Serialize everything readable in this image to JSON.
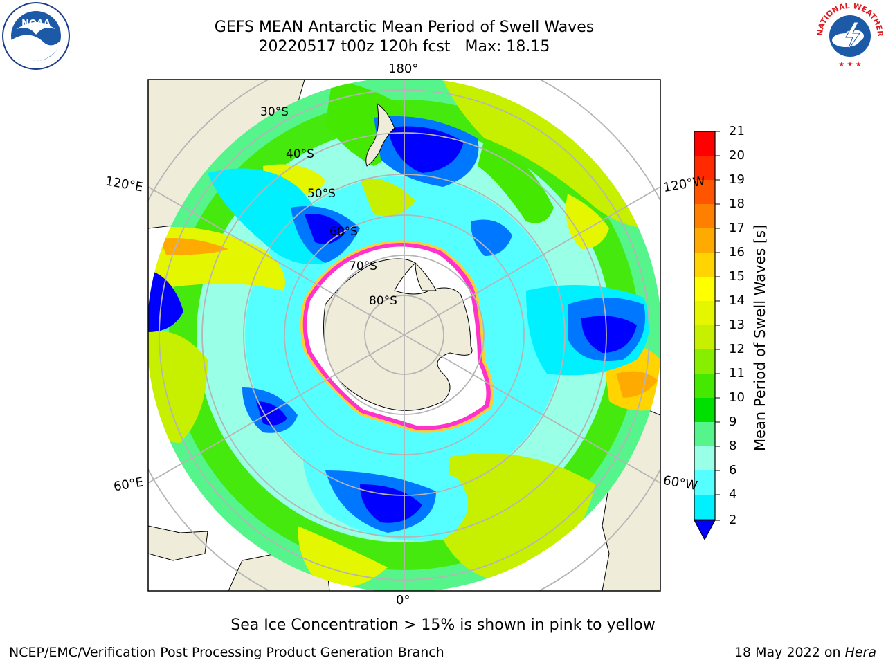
{
  "header": {
    "title": "GEFS MEAN Antarctic Mean Period of Swell Waves",
    "date_run": "20220517 t00z 120h fcst",
    "max_label": "Max: 18.15"
  },
  "logos": {
    "left": {
      "icon": "noaa-logo-icon",
      "text": "NOAA"
    },
    "right": {
      "icon": "nws-logo-icon",
      "text": "NATIONAL WEATHER SERVICE"
    }
  },
  "map": {
    "projection": "south-polar-stereographic",
    "longitude_labels": {
      "top": "180°",
      "bottom": "0°",
      "upper_left": "120°E",
      "lower_left": "60°E",
      "upper_right": "120°W",
      "lower_right": "60°W"
    },
    "latitude_labels": [
      "30°S",
      "40°S",
      "50°S",
      "60°S",
      "70°S",
      "80°S"
    ],
    "colors": {
      "land": "#efedda",
      "ice_free_interior": "#ffffff",
      "ice_edge_pink": "#ff33cc",
      "ice_edge_yellow": "#ffcc33",
      "grid": "#b5b5b5"
    }
  },
  "colorbar": {
    "label": "Mean Period of Swell Waves [s]",
    "ticks": [
      "21",
      "20",
      "19",
      "18",
      "17",
      "16",
      "15",
      "14",
      "13",
      "12",
      "11",
      "10",
      "9",
      "8",
      "6",
      "4",
      "2"
    ],
    "colors_top_to_bottom": [
      "#ff0000",
      "#ff2a00",
      "#ff5500",
      "#ff7f00",
      "#ffaa00",
      "#ffd400",
      "#ffff00",
      "#e5f700",
      "#c6f000",
      "#88ee00",
      "#44e800",
      "#00e000",
      "#55f58c",
      "#99ffe6",
      "#55ffff",
      "#00f0ff",
      "#0077ff"
    ],
    "extend_color": "#0000ff"
  },
  "notes": {
    "ice": "Sea Ice Concentration > 15% is shown in pink to yellow"
  },
  "footer": {
    "left": "NCEP/EMC/Verification Post Processing Product Generation Branch",
    "date": "18 May 2022 on ",
    "machine": "Hera"
  }
}
